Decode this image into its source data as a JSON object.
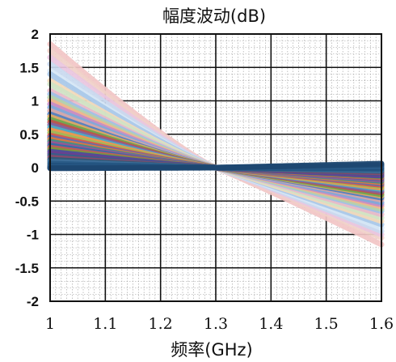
{
  "chart_data": {
    "type": "line",
    "title": "幅度波动(dB)",
    "xlabel": "频率(GHz)",
    "ylabel": "",
    "xlim": [
      1,
      1.6
    ],
    "ylim": [
      -2,
      2
    ],
    "x_ticks": [
      1,
      1.1,
      1.2,
      1.3,
      1.4,
      1.5,
      1.6
    ],
    "x_tick_labels": [
      "1",
      "1.1",
      "1.2",
      "1.3",
      "1.4",
      "1.5",
      "1.6"
    ],
    "y_ticks": [
      2,
      1.5,
      1,
      0.5,
      0,
      -0.5,
      -1,
      -1.5,
      -2
    ],
    "y_tick_labels": [
      "2",
      "1.5",
      "1",
      "0.5",
      "0",
      "-0.5",
      "-1",
      "-1.5",
      "-2"
    ],
    "grid": {
      "major": true,
      "minor": true
    },
    "series_count": 42,
    "series": [
      {
        "start": 1.85,
        "end": -1.15,
        "color": "#f2c6c6"
      },
      {
        "start": 1.75,
        "end": -1.05,
        "color": "#f0d0c8"
      },
      {
        "start": 1.65,
        "end": -1.0,
        "color": "#e9c6e0"
      },
      {
        "start": 1.55,
        "end": -0.95,
        "color": "#c9d9ef"
      },
      {
        "start": 1.45,
        "end": -0.9,
        "color": "#d6e6f5"
      },
      {
        "start": 1.4,
        "end": -0.85,
        "color": "#a9c8e8"
      },
      {
        "start": 1.3,
        "end": -0.8,
        "color": "#f3d9b8"
      },
      {
        "start": 1.25,
        "end": -0.75,
        "color": "#cfe3c4"
      },
      {
        "start": 1.15,
        "end": -0.7,
        "color": "#e8b9c9"
      },
      {
        "start": 1.1,
        "end": -0.65,
        "color": "#9ec0e6"
      },
      {
        "start": 1.05,
        "end": -0.62,
        "color": "#b5d1a9"
      },
      {
        "start": 1.0,
        "end": -0.58,
        "color": "#f2b58c"
      },
      {
        "start": 0.95,
        "end": -0.55,
        "color": "#c78bc7"
      },
      {
        "start": 0.9,
        "end": -0.52,
        "color": "#7fa9d9"
      },
      {
        "start": 0.85,
        "end": -0.48,
        "color": "#d9a6a6"
      },
      {
        "start": 0.8,
        "end": -0.45,
        "color": "#4f7fbf"
      },
      {
        "start": 0.76,
        "end": -0.42,
        "color": "#e4a95f"
      },
      {
        "start": 0.72,
        "end": -0.4,
        "color": "#6aa84f"
      },
      {
        "start": 0.68,
        "end": -0.37,
        "color": "#c0504d"
      },
      {
        "start": 0.64,
        "end": -0.35,
        "color": "#8064a2"
      },
      {
        "start": 0.6,
        "end": -0.32,
        "color": "#4bacc6"
      },
      {
        "start": 0.56,
        "end": -0.3,
        "color": "#f79646"
      },
      {
        "start": 0.52,
        "end": -0.28,
        "color": "#9bbb59"
      },
      {
        "start": 0.48,
        "end": -0.26,
        "color": "#d9534f"
      },
      {
        "start": 0.45,
        "end": -0.24,
        "color": "#5b6fb3"
      },
      {
        "start": 0.42,
        "end": -0.22,
        "color": "#e07b39"
      },
      {
        "start": 0.39,
        "end": -0.2,
        "color": "#3c8d8d"
      },
      {
        "start": 0.36,
        "end": -0.18,
        "color": "#a05195"
      },
      {
        "start": 0.33,
        "end": -0.16,
        "color": "#2f6fa8"
      },
      {
        "start": 0.3,
        "end": -0.15,
        "color": "#c55a5a"
      },
      {
        "start": 0.27,
        "end": -0.13,
        "color": "#7a9a3a"
      },
      {
        "start": 0.24,
        "end": -0.12,
        "color": "#4a4aa0"
      },
      {
        "start": 0.21,
        "end": -0.1,
        "color": "#6b3f8f"
      },
      {
        "start": 0.18,
        "end": -0.08,
        "color": "#355f8a"
      },
      {
        "start": 0.15,
        "end": -0.07,
        "color": "#8c4a6a"
      },
      {
        "start": 0.12,
        "end": -0.05,
        "color": "#2e5a78"
      },
      {
        "start": 0.09,
        "end": -0.04,
        "color": "#3d6e9a"
      },
      {
        "start": 0.06,
        "end": -0.02,
        "color": "#285a85"
      },
      {
        "start": 0.03,
        "end": 0.0,
        "color": "#1f4e79"
      },
      {
        "start": 0.01,
        "end": 0.02,
        "color": "#2b5d8c"
      },
      {
        "start": 0.0,
        "end": 0.04,
        "color": "#24507a"
      },
      {
        "start": -0.01,
        "end": 0.06,
        "color": "#1d4670"
      }
    ],
    "crossover_x": 1.3
  }
}
